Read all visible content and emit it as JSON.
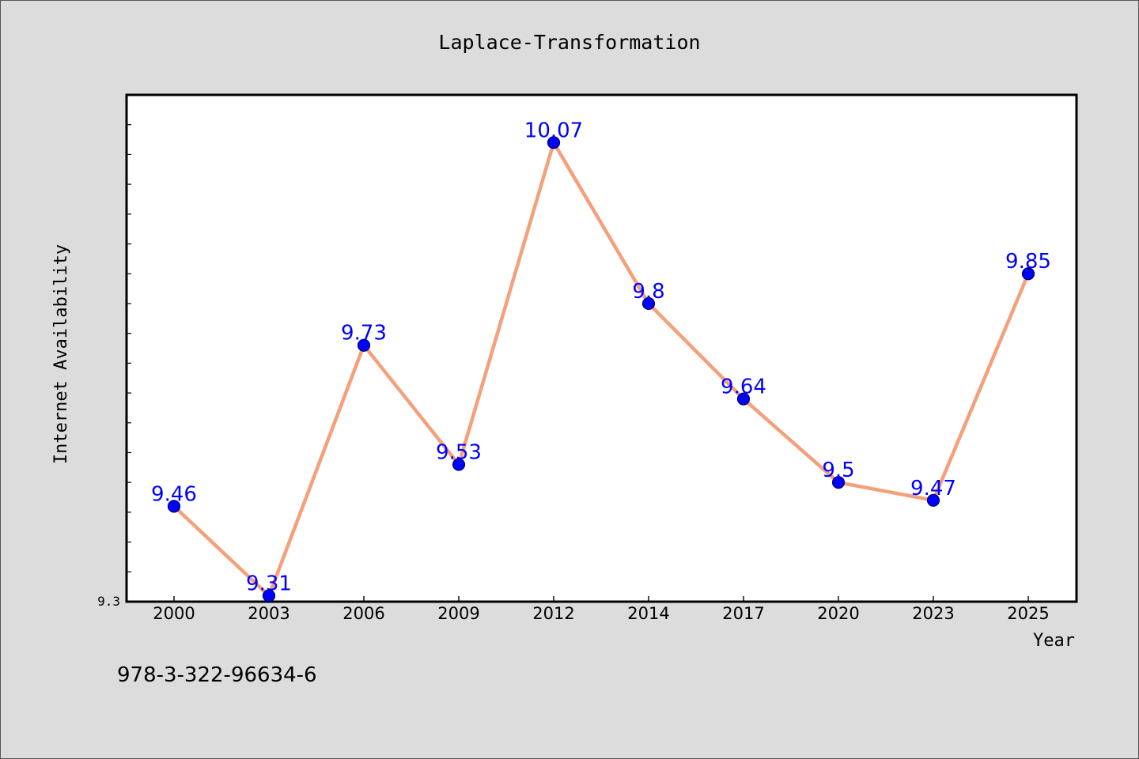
{
  "chart_data": {
    "type": "line",
    "title": "Laplace-Transformation",
    "xlabel": "Year",
    "ylabel": "Internet Availability",
    "categories": [
      "2000",
      "2003",
      "2006",
      "2009",
      "2012",
      "2014",
      "2017",
      "2020",
      "2023",
      "2025"
    ],
    "series": [
      {
        "values": [
          9.46,
          9.31,
          9.73,
          9.53,
          10.07,
          9.8,
          9.64,
          9.5,
          9.47,
          9.85
        ]
      }
    ],
    "data_labels": [
      "9.46",
      "9.31",
      "9.73",
      "9.53",
      "10.07",
      "9.8",
      "9.64",
      "9.5",
      "9.47",
      "9.85"
    ],
    "ylim": [
      9.3,
      10.15
    ],
    "ytick_label": "9.3",
    "grid": false,
    "legend": false,
    "colors": {
      "line": "#f4a07a",
      "marker": "#0000ff",
      "label": "#0000ff",
      "background": "#dcdcdc"
    }
  },
  "footnote": "978-3-322-96634-6"
}
